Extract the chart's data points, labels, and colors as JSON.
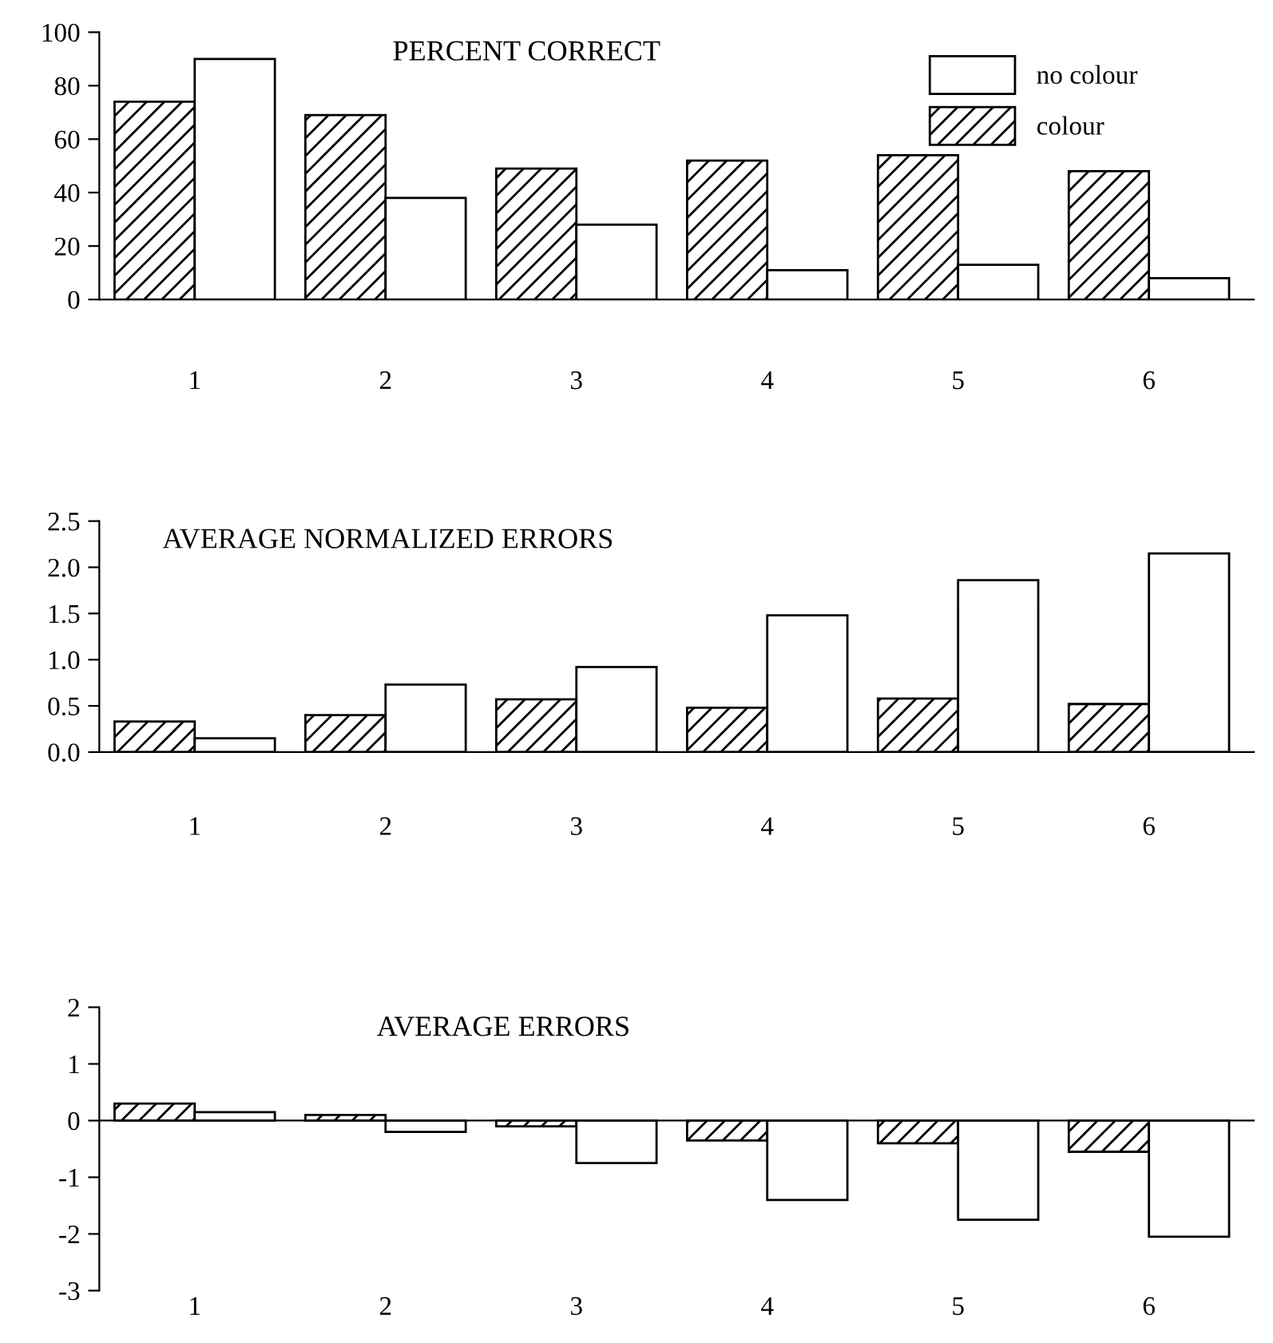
{
  "chart_data": [
    {
      "type": "bar",
      "title": "PERCENT CORRECT",
      "categories": [
        "1",
        "2",
        "3",
        "4",
        "5",
        "6"
      ],
      "series": [
        {
          "name": "colour",
          "color": "#000000",
          "values": [
            74,
            69,
            49,
            52,
            54,
            48
          ]
        },
        {
          "name": "no colour",
          "color": "#ffffff",
          "values": [
            90,
            38,
            28,
            11,
            13,
            8
          ]
        }
      ],
      "ylim": [
        0,
        100
      ],
      "yticks": [
        0,
        20,
        40,
        60,
        80,
        100
      ],
      "legend": "top right",
      "grid": false
    },
    {
      "type": "bar",
      "title": "AVERAGE NORMALIZED ERRORS",
      "categories": [
        "1",
        "2",
        "3",
        "4",
        "5",
        "6"
      ],
      "series": [
        {
          "color": "#000000",
          "values": [
            0.33,
            0.4,
            0.57,
            0.48,
            0.58,
            0.52
          ]
        },
        {
          "color": "#ffffff",
          "values": [
            0.15,
            0.73,
            0.92,
            1.48,
            1.86,
            2.15
          ]
        }
      ],
      "ylim": [
        0,
        2.5
      ],
      "yticks": [
        {
          "value": 0,
          "label": "0.0"
        },
        0.5,
        {
          "value": 1,
          "label": "1.0"
        },
        1.5,
        {
          "value": 2,
          "label": "2.0"
        },
        2.5
      ],
      "grid": false
    },
    {
      "type": "bar",
      "title": "AVERAGE ERRORS",
      "categories": [
        "1",
        "2",
        "3",
        "4",
        "5",
        "6"
      ],
      "series": [
        {
          "color": "#000000",
          "values": [
            0.3,
            0.1,
            -0.1,
            -0.35,
            -0.4,
            -0.55
          ]
        },
        {
          "color": "#ffffff",
          "values": [
            0.15,
            -0.2,
            -0.75,
            -1.4,
            -1.75,
            -2.05
          ]
        }
      ],
      "ylim": [
        -3,
        2
      ],
      "yticks": [
        -3,
        -2,
        -1,
        0,
        1,
        2
      ]
    }
  ]
}
